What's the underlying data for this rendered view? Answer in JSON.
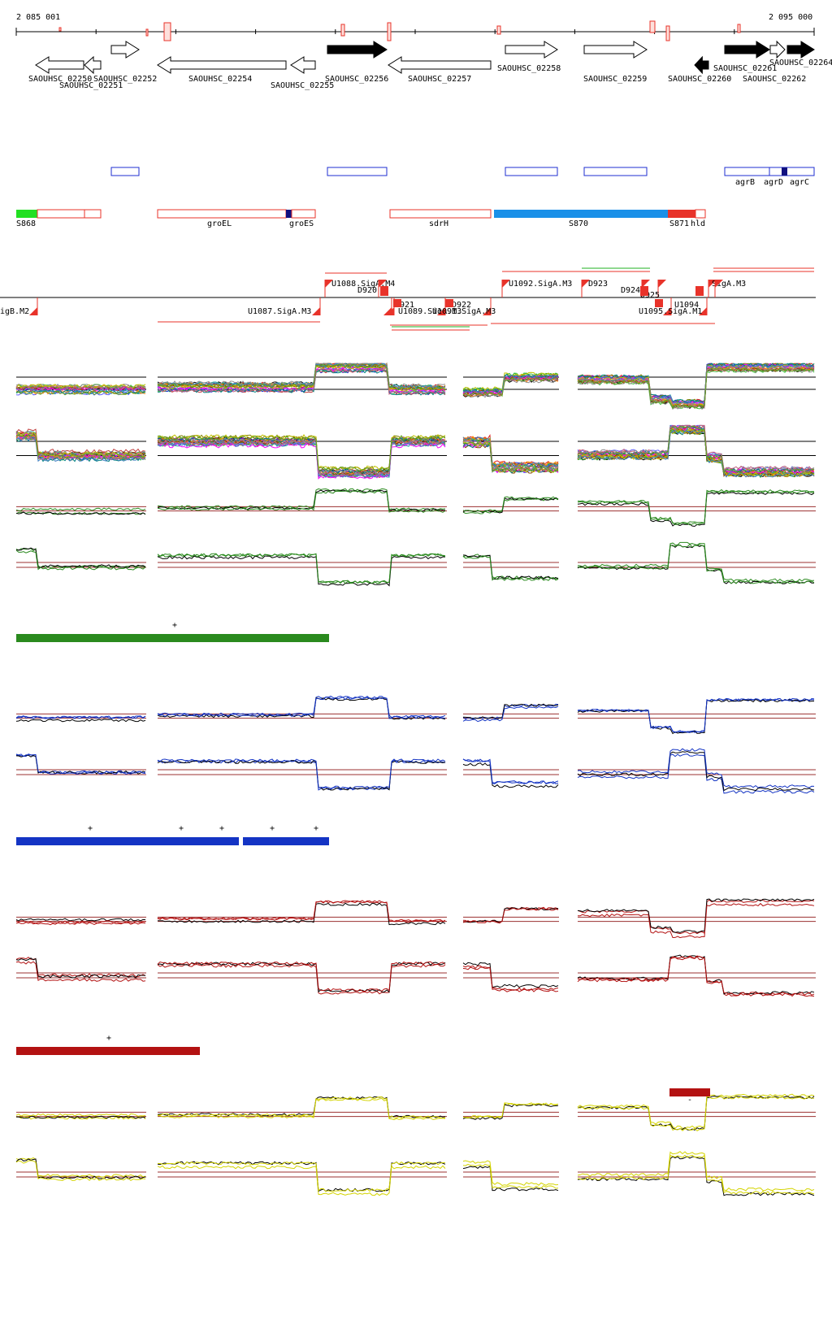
{
  "ruler": {
    "start": "2 085 001",
    "end": "2 095 000"
  },
  "colors": {
    "rna_red": "#e8332a",
    "blue_box": "#1f2fd0",
    "green": "#2a8a1e",
    "blue": "#1434c4",
    "darkred": "#b31212",
    "yellow": "#d4d400",
    "s870": "#1a90e8",
    "s868": "#22e022"
  },
  "genes": [
    {
      "id": "SAOUHSC_02250",
      "strand": "-",
      "filled": false
    },
    {
      "id": "SAOUHSC_02251",
      "strand": "-",
      "filled": false
    },
    {
      "id": "SAOUHSC_02252",
      "strand": "+",
      "filled": false
    },
    {
      "id": "SAOUHSC_02254",
      "strand": "-",
      "filled": false
    },
    {
      "id": "SAOUHSC_02255",
      "strand": "-",
      "filled": false
    },
    {
      "id": "SAOUHSC_02256",
      "strand": "+",
      "filled": true
    },
    {
      "id": "SAOUHSC_02257",
      "strand": "-",
      "filled": false
    },
    {
      "id": "SAOUHSC_02258",
      "strand": "+",
      "filled": false
    },
    {
      "id": "SAOUHSC_02259",
      "strand": "+",
      "filled": false
    },
    {
      "id": "SAOUHSC_02260",
      "strand": "-",
      "filled": true
    },
    {
      "id": "SAOUHSC_02261",
      "strand": "+",
      "filled": true
    },
    {
      "id": "SAOUHSC_02262",
      "strand": "+",
      "filled": false
    },
    {
      "id": "SAOUHSC_02264",
      "strand": "+",
      "filled": true
    }
  ],
  "agr_labels": [
    "agrB",
    "agrD",
    "agrC"
  ],
  "rna_segments": [
    "S868",
    "groEL",
    "groES",
    "sdrH",
    "S870",
    "S871",
    "hld"
  ],
  "promoters": [
    "igB.M2",
    "U1087.SigA.M3",
    "U1088.SigA.M4",
    "D920",
    "D921",
    "U1089.SigA.M3",
    "D922",
    "U1091.SigA.M3",
    "U1092.SigA.M3",
    "D923",
    "D924",
    "D925",
    "U1094",
    "U1095.SigA.M1",
    "SigA.M3"
  ],
  "conditions": [
    {
      "name": "green",
      "segment_marks": [
        "+"
      ]
    },
    {
      "name": "blue",
      "segment_marks": [
        "+",
        "+",
        "+",
        "+",
        "+"
      ]
    },
    {
      "name": "darkred",
      "segment_marks": [
        "+",
        "-"
      ]
    },
    {
      "name": "yellow",
      "segment_marks": []
    }
  ]
}
